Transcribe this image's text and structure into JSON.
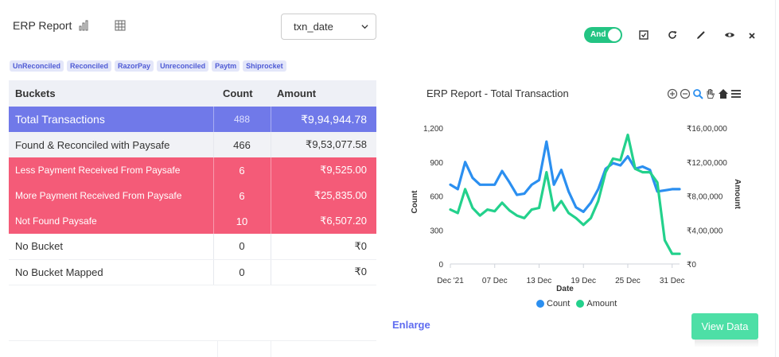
{
  "header": {
    "title": "ERP Report",
    "select_value": "txn_date"
  },
  "tags": [
    "UnReconciled",
    "Reconciled",
    "RazorPay",
    "Unreconciled",
    "Paytm",
    "Shiprocket"
  ],
  "table": {
    "headers": [
      "Buckets",
      "Count",
      "Amount"
    ],
    "rows": [
      {
        "bucket": "Total  Transactions",
        "count": "488",
        "amount": "₹9,94,944.78",
        "style": "total"
      },
      {
        "bucket": "Found & Reconciled with Paysafe",
        "count": "466",
        "amount": "₹9,53,077.58",
        "style": "light"
      },
      {
        "bucket": "Less Payment Received From Paysafe",
        "count": "6",
        "amount": "₹9,525.00",
        "style": "pink"
      },
      {
        "bucket": "More Payment Received From Paysafe",
        "count": "6",
        "amount": "₹25,835.00",
        "style": "pink"
      },
      {
        "bucket": "Not Found Paysafe",
        "count": "10",
        "amount": "₹6,507.20",
        "style": "pink"
      },
      {
        "bucket": "No Bucket",
        "count": "0",
        "amount": "₹0",
        "style": "plain"
      },
      {
        "bucket": "No Bucket Mapped",
        "count": "0",
        "amount": "₹0",
        "style": "plain"
      }
    ]
  },
  "toolbar": {
    "toggle_label": "And",
    "toggle_on": true
  },
  "chart_title": "ERP Report - Total Transaction",
  "chart_data": {
    "type": "line",
    "xlabel": "Date",
    "ylabel": "Count",
    "y2label": "Amount",
    "x_ticks": [
      "Dec '21",
      "07 Dec",
      "13 Dec",
      "19 Dec",
      "25 Dec",
      "31 Dec"
    ],
    "y_ticks": [
      "0",
      "300",
      "600",
      "900",
      "1,200"
    ],
    "y2_ticks": [
      "₹0",
      "₹4,00,000",
      "₹8,00,000",
      "₹12,00,000",
      "₹16,00,000"
    ],
    "ylim": [
      0,
      1200
    ],
    "y2lim": [
      0,
      1600000
    ],
    "x_days": [
      1,
      2,
      3,
      4,
      5,
      6,
      7,
      8,
      9,
      10,
      11,
      12,
      13,
      14,
      15,
      16,
      17,
      18,
      19,
      20,
      21,
      22,
      23,
      24,
      25,
      26,
      27,
      28,
      29,
      30,
      31,
      32
    ],
    "series": [
      {
        "name": "Count",
        "color": "#2b8ff0",
        "values": [
          700,
          660,
          900,
          760,
          700,
          700,
          700,
          820,
          720,
          610,
          620,
          700,
          740,
          1080,
          700,
          830,
          640,
          500,
          460,
          540,
          660,
          840,
          890,
          870,
          950,
          840,
          860,
          830,
          640,
          650,
          660,
          660
        ]
      },
      {
        "name": "Amount",
        "color": "#23d18c",
        "axis": "right",
        "values": [
          640000,
          600000,
          880000,
          660000,
          570000,
          640000,
          620000,
          720000,
          630000,
          570000,
          540000,
          640000,
          660000,
          1080000,
          630000,
          740000,
          600000,
          540000,
          460000,
          540000,
          740000,
          1080000,
          1240000,
          1220000,
          1520000,
          1120000,
          1080000,
          1080000,
          960000,
          280000,
          120000,
          120000
        ]
      }
    ],
    "legend_position": "bottom",
    "grid": false
  },
  "actions": {
    "enlarge_label": "Enlarge",
    "view_label": "View Data"
  },
  "colors": {
    "accent": "#7079e9",
    "danger": "#f45b78",
    "success": "#23c483",
    "view_button": "#4ddfa6"
  }
}
